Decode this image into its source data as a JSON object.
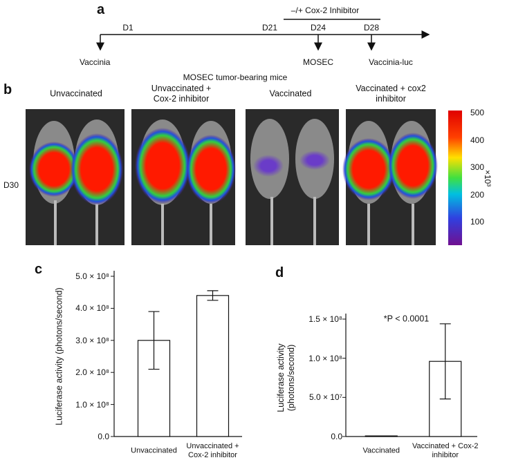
{
  "panels": {
    "a": {
      "label": "a",
      "bracket": "–/+ Cox-2 Inhibitor",
      "days": [
        "D1",
        "D21",
        "D24",
        "D28"
      ],
      "events": [
        "Vaccinia",
        "MOSEC",
        "Vaccinia-luc"
      ]
    },
    "b": {
      "label": "b",
      "title": "MOSEC tumor-bearing mice",
      "groups": [
        "Unvaccinated",
        "Unvaccinated + Cox-2 inhibitor",
        "Vaccinated",
        "Vaccinated + cox2 inhibitor"
      ],
      "row_label": "D30",
      "colorbar": {
        "ticks": [
          500,
          400,
          300,
          200,
          100
        ],
        "unit": "×10³"
      }
    },
    "c": {
      "label": "c"
    },
    "d": {
      "label": "d"
    }
  },
  "chart_data": [
    {
      "type": "bar",
      "y_label": "Luciferase activity (photons/second)",
      "categories": [
        "Unvaccinated",
        "Unvaccinated + Cox-2 inhibitor"
      ],
      "values": [
        300000000,
        440000000
      ],
      "errors": [
        90000000,
        15000000
      ],
      "color": "#ffffff",
      "ylim": [
        0,
        500000000
      ],
      "yticks": [
        {
          "value": 0,
          "label": "0.0"
        },
        {
          "value": 100000000,
          "label": "1.0 × 10⁸"
        },
        {
          "value": 200000000,
          "label": "2.0 × 10⁸"
        },
        {
          "value": 300000000,
          "label": "3.0 × 10⁸"
        },
        {
          "value": 400000000,
          "label": "4.0 × 10⁸"
        },
        {
          "value": 500000000,
          "label": "5.0 × 10⁸"
        }
      ]
    },
    {
      "type": "bar",
      "y_label": "Luciferase activity (photons/second)",
      "annotation": "*P < 0.0001",
      "categories": [
        "Vaccinated",
        "Vaccinated + Cox-2 inhibitor"
      ],
      "values": [
        800000,
        96000000
      ],
      "errors": [
        0,
        48000000
      ],
      "color": "#ffffff",
      "ylim": [
        0,
        150000000
      ],
      "yticks": [
        {
          "value": 0,
          "label": "0.0"
        },
        {
          "value": 50000000,
          "label": "5.0 × 10⁷"
        },
        {
          "value": 100000000,
          "label": "1.0 × 10⁸"
        },
        {
          "value": 150000000,
          "label": "1.5 × 10⁸"
        }
      ]
    }
  ]
}
